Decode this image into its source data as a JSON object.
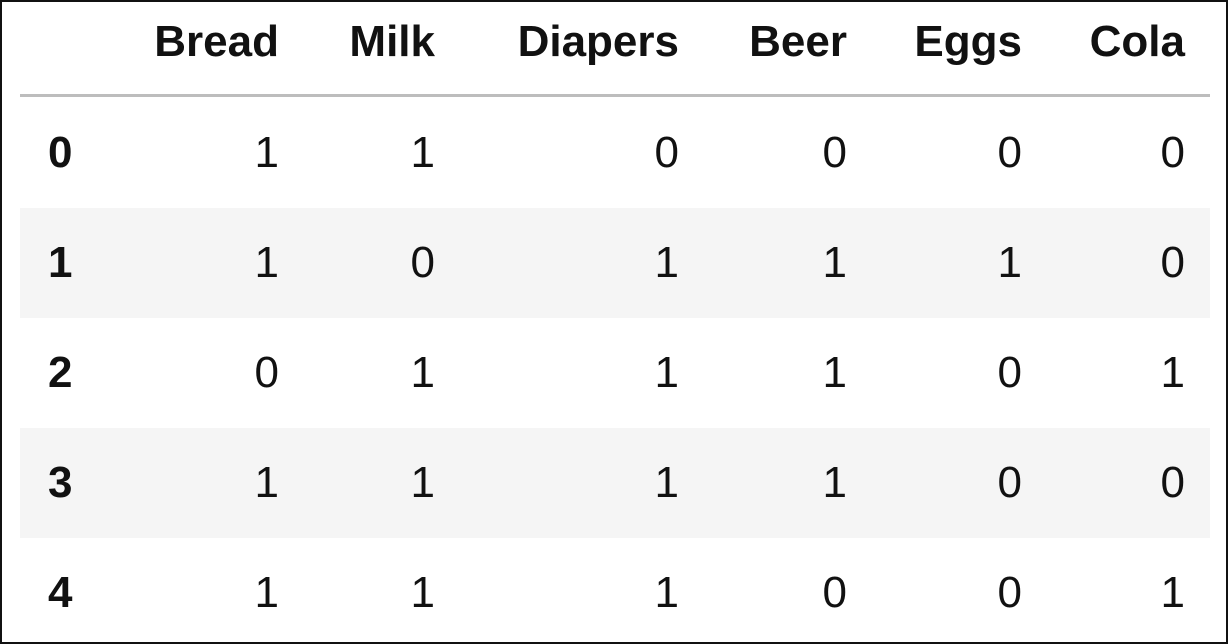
{
  "table": {
    "columns": [
      "Bread",
      "Milk",
      "Diapers",
      "Beer",
      "Eggs",
      "Cola"
    ],
    "index": [
      "0",
      "1",
      "2",
      "3",
      "4"
    ],
    "rows": [
      [
        1,
        1,
        0,
        0,
        0,
        0
      ],
      [
        1,
        0,
        1,
        1,
        1,
        0
      ],
      [
        0,
        1,
        1,
        1,
        0,
        1
      ],
      [
        1,
        1,
        1,
        1,
        0,
        0
      ],
      [
        1,
        1,
        1,
        0,
        0,
        1
      ]
    ]
  }
}
